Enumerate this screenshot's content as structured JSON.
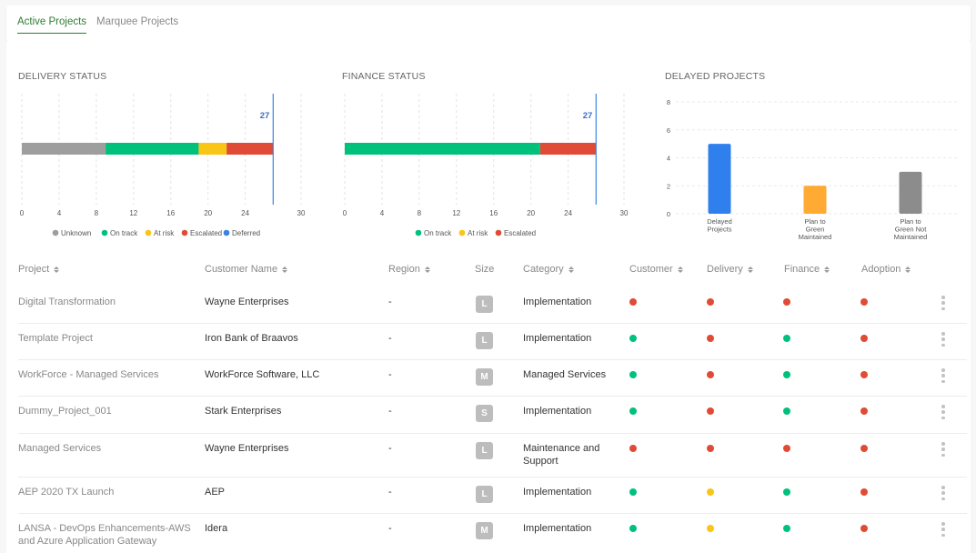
{
  "tabs": [
    {
      "label": "Active Projects",
      "active": true
    },
    {
      "label": "Marquee Projects",
      "active": false
    }
  ],
  "colors": {
    "unknown": "#9e9e9e",
    "on_track": "#00c17c",
    "at_risk": "#f9c516",
    "escalated": "#e04b36",
    "deferred": "#3b82e4",
    "delayed_bar_1": "#2f80ed",
    "delayed_bar_2": "#ffaa33",
    "delayed_bar_3": "#8c8c8c",
    "status_red": "#e04b36",
    "status_green": "#00c17c",
    "status_yellow": "#f9c516"
  },
  "chart_data": [
    {
      "type": "bar",
      "orientation": "horizontal-stacked",
      "title": "DELIVERY STATUS",
      "series": [
        {
          "name": "Unknown",
          "value": 9
        },
        {
          "name": "On track",
          "value": 10
        },
        {
          "name": "At risk",
          "value": 3
        },
        {
          "name": "Escalated",
          "value": 5
        },
        {
          "name": "Deferred",
          "value": 0
        }
      ],
      "total_label": "27",
      "total_value": 27,
      "xlim": [
        0,
        30
      ],
      "xticks": [
        "0",
        "4",
        "8",
        "12",
        "16",
        "20",
        "24",
        "30"
      ],
      "xtick_values": [
        0,
        4,
        8,
        12,
        16,
        20,
        24,
        30
      ],
      "legend": [
        "Unknown",
        "On track",
        "At risk",
        "Escalated",
        "Deferred"
      ]
    },
    {
      "type": "bar",
      "orientation": "horizontal-stacked",
      "title": "FINANCE STATUS",
      "series": [
        {
          "name": "On track",
          "value": 21
        },
        {
          "name": "At risk",
          "value": 0
        },
        {
          "name": "Escalated",
          "value": 6
        }
      ],
      "total_label": "27",
      "total_value": 27,
      "xlim": [
        0,
        30
      ],
      "xticks": [
        "0",
        "4",
        "8",
        "12",
        "16",
        "20",
        "24",
        "30"
      ],
      "xtick_values": [
        0,
        4,
        8,
        12,
        16,
        20,
        24,
        30
      ],
      "legend": [
        "On track",
        "At risk",
        "Escalated"
      ]
    },
    {
      "type": "bar",
      "title": "DELAYED PROJECTS",
      "categories": [
        [
          "Delayed",
          "Projects"
        ],
        [
          "Plan to",
          "Green",
          "Maintained"
        ],
        [
          "Plan to",
          "Green Not",
          "Maintained"
        ]
      ],
      "values": [
        5,
        2,
        3
      ],
      "ylim": [
        0,
        8
      ],
      "yticks": [
        "0",
        "2",
        "4",
        "6",
        "8"
      ],
      "ytick_values": [
        0,
        2,
        4,
        6,
        8
      ]
    }
  ],
  "table": {
    "columns": [
      "Project",
      "Customer Name",
      "Region",
      "Size",
      "Category",
      "Customer",
      "Delivery",
      "Finance",
      "Adoption"
    ],
    "rows": [
      {
        "project": [
          "Digital Transformation"
        ],
        "customer_name": "Wayne Enterprises",
        "region": "-",
        "size": "L",
        "category": [
          "Implementation"
        ],
        "customer": "red",
        "delivery": "red",
        "finance": "red",
        "adoption": "red"
      },
      {
        "project": [
          "Template Project"
        ],
        "customer_name": "Iron Bank of Braavos",
        "region": "-",
        "size": "L",
        "category": [
          "Implementation"
        ],
        "customer": "green",
        "delivery": "red",
        "finance": "green",
        "adoption": "red"
      },
      {
        "project": [
          "WorkForce - Managed Services"
        ],
        "customer_name": "WorkForce Software, LLC",
        "region": "-",
        "size": "M",
        "category": [
          "Managed Services"
        ],
        "customer": "green",
        "delivery": "red",
        "finance": "green",
        "adoption": "red"
      },
      {
        "project": [
          "Dummy_Project_001"
        ],
        "customer_name": "Stark Enterprises",
        "region": "-",
        "size": "S",
        "category": [
          "Implementation"
        ],
        "customer": "green",
        "delivery": "red",
        "finance": "green",
        "adoption": "red"
      },
      {
        "project": [
          "Managed Services"
        ],
        "customer_name": "Wayne Enterprises",
        "region": "-",
        "size": "L",
        "category": [
          "Maintenance and",
          "Support"
        ],
        "customer": "red",
        "delivery": "red",
        "finance": "red",
        "adoption": "red"
      },
      {
        "project": [
          "AEP 2020 TX Launch"
        ],
        "customer_name": "AEP",
        "region": "-",
        "size": "L",
        "category": [
          "Implementation"
        ],
        "customer": "green",
        "delivery": "yellow",
        "finance": "green",
        "adoption": "red"
      },
      {
        "project": [
          "LANSA - DevOps Enhancements-AWS",
          "and Azure Application Gateway"
        ],
        "customer_name": "Idera",
        "region": "-",
        "size": "M",
        "category": [
          "Implementation"
        ],
        "customer": "green",
        "delivery": "yellow",
        "finance": "green",
        "adoption": "red"
      }
    ]
  }
}
